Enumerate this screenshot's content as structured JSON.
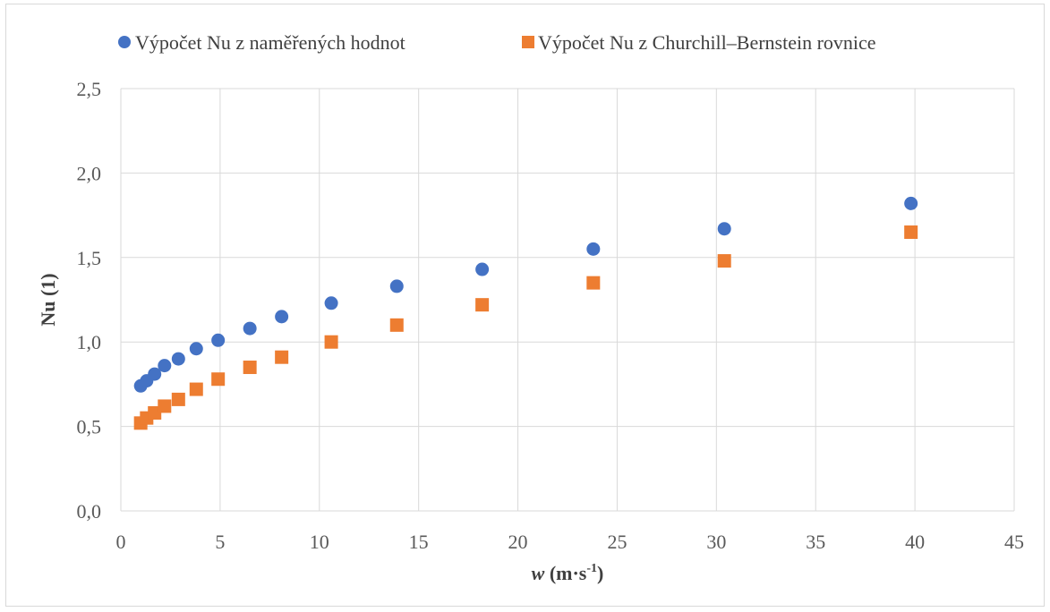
{
  "chart_data": {
    "type": "scatter",
    "title": "",
    "xlabel": "w (m·s-1)",
    "xlabel_parts": {
      "var": "w",
      "unit_base": " (m·s",
      "unit_sup": "-1",
      "unit_close": ")"
    },
    "ylabel": "Nu (1)",
    "xlim": [
      0,
      45
    ],
    "ylim": [
      0,
      2.5
    ],
    "x_ticks": [
      "0",
      "5",
      "10",
      "15",
      "20",
      "25",
      "30",
      "35",
      "40",
      "45"
    ],
    "y_ticks": [
      "0,0",
      "0,5",
      "1,0",
      "1,5",
      "2,0",
      "2,5"
    ],
    "grid": true,
    "legend_position": "top",
    "series": [
      {
        "name": "Výpočet Nu z naměřených hodnot",
        "marker": "circle",
        "color": "#4472C4",
        "x": [
          1.0,
          1.3,
          1.7,
          2.2,
          2.9,
          3.8,
          4.9,
          6.5,
          8.1,
          10.6,
          13.9,
          18.2,
          23.8,
          30.4,
          39.8
        ],
        "y": [
          0.74,
          0.77,
          0.81,
          0.86,
          0.9,
          0.96,
          1.01,
          1.08,
          1.15,
          1.23,
          1.33,
          1.43,
          1.55,
          1.67,
          1.82
        ]
      },
      {
        "name": "Výpočet Nu z Churchill–Bernstein rovnice",
        "marker": "square",
        "color": "#ED7D31",
        "x": [
          1.0,
          1.3,
          1.7,
          2.2,
          2.9,
          3.8,
          4.9,
          6.5,
          8.1,
          10.6,
          13.9,
          18.2,
          23.8,
          30.4,
          39.8
        ],
        "y": [
          0.52,
          0.55,
          0.58,
          0.62,
          0.66,
          0.72,
          0.78,
          0.85,
          0.91,
          1.0,
          1.1,
          1.22,
          1.35,
          1.48,
          1.65
        ]
      }
    ]
  }
}
